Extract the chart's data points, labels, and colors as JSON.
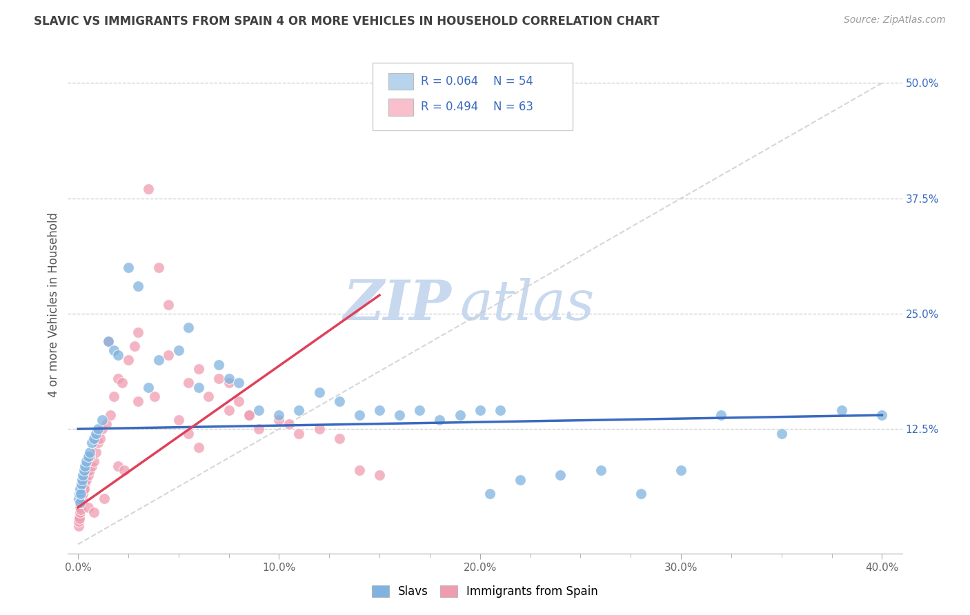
{
  "title": "SLAVIC VS IMMIGRANTS FROM SPAIN 4 OR MORE VEHICLES IN HOUSEHOLD CORRELATION CHART",
  "source_text": "Source: ZipAtlas.com",
  "ylabel": "4 or more Vehicles in Household",
  "x_tick_labels": [
    "0.0%",
    "10.0%",
    "20.0%",
    "30.0%",
    "40.0%"
  ],
  "x_tick_vals": [
    0.0,
    10.0,
    20.0,
    30.0,
    40.0
  ],
  "y_tick_labels": [
    "12.5%",
    "25.0%",
    "37.5%",
    "50.0%"
  ],
  "y_tick_vals": [
    12.5,
    25.0,
    37.5,
    50.0
  ],
  "xlim": [
    -0.5,
    41.0
  ],
  "ylim": [
    -1.0,
    53.0
  ],
  "legend_labels_r": [
    "R = 0.064",
    "R = 0.494"
  ],
  "legend_labels_n": [
    "N = 54",
    "N = 63"
  ],
  "legend_colors": [
    "#b8d4ed",
    "#f9bfcc"
  ],
  "bottom_legend_labels": [
    "Slavs",
    "Immigrants from Spain"
  ],
  "slavs_color": "#7fb3e0",
  "spain_color": "#f09cb0",
  "slavs_line_color": "#3a6abf",
  "spain_line_color": "#e0405a",
  "ref_line_color": "#cccccc",
  "grid_color": "#cccccc",
  "title_color": "#404040",
  "watermark_color": "#c8d8ee",
  "slavs_x": [
    0.05,
    0.08,
    0.1,
    0.12,
    0.15,
    0.18,
    0.2,
    0.25,
    0.3,
    0.35,
    0.4,
    0.5,
    0.6,
    0.7,
    0.8,
    0.9,
    1.0,
    1.2,
    1.5,
    1.8,
    2.0,
    2.5,
    3.0,
    3.5,
    4.0,
    5.0,
    5.5,
    6.0,
    7.0,
    7.5,
    8.0,
    9.0,
    10.0,
    11.0,
    12.0,
    13.0,
    14.0,
    15.0,
    16.0,
    17.0,
    18.0,
    19.0,
    20.5,
    21.0,
    22.0,
    24.0,
    26.0,
    28.0,
    30.0,
    32.0,
    35.0,
    38.0,
    40.0,
    20.0
  ],
  "slavs_y": [
    5.0,
    5.5,
    4.5,
    6.0,
    5.5,
    6.5,
    7.0,
    7.5,
    8.0,
    8.5,
    9.0,
    9.5,
    10.0,
    11.0,
    11.5,
    12.0,
    12.5,
    13.5,
    22.0,
    21.0,
    20.5,
    30.0,
    28.0,
    17.0,
    20.0,
    21.0,
    23.5,
    17.0,
    19.5,
    18.0,
    17.5,
    14.5,
    14.0,
    14.5,
    16.5,
    15.5,
    14.0,
    14.5,
    14.0,
    14.5,
    13.5,
    14.0,
    5.5,
    14.5,
    7.0,
    7.5,
    8.0,
    5.5,
    8.0,
    14.0,
    12.0,
    14.5,
    14.0,
    14.5
  ],
  "spain_x": [
    0.02,
    0.04,
    0.06,
    0.08,
    0.1,
    0.12,
    0.15,
    0.18,
    0.2,
    0.25,
    0.3,
    0.35,
    0.4,
    0.5,
    0.6,
    0.7,
    0.8,
    0.9,
    1.0,
    1.1,
    1.2,
    1.4,
    1.6,
    1.8,
    2.0,
    2.2,
    2.5,
    2.8,
    3.0,
    3.5,
    4.0,
    4.5,
    5.0,
    5.5,
    6.0,
    6.5,
    7.0,
    7.5,
    8.0,
    8.5,
    9.0,
    10.0,
    11.0,
    12.0,
    13.0,
    14.0,
    15.0,
    0.6,
    1.5,
    2.0,
    3.0,
    4.5,
    6.0,
    8.5,
    10.5,
    0.3,
    0.5,
    0.8,
    1.3,
    2.3,
    3.8,
    5.5,
    7.5
  ],
  "spain_y": [
    2.0,
    2.5,
    3.0,
    2.8,
    3.5,
    4.0,
    3.8,
    4.5,
    5.0,
    5.5,
    6.0,
    6.5,
    7.0,
    7.5,
    8.0,
    8.5,
    9.0,
    10.0,
    11.0,
    11.5,
    12.5,
    13.0,
    14.0,
    16.0,
    18.0,
    17.5,
    20.0,
    21.5,
    23.0,
    38.5,
    30.0,
    26.0,
    13.5,
    17.5,
    19.0,
    16.0,
    18.0,
    14.5,
    15.5,
    14.0,
    12.5,
    13.5,
    12.0,
    12.5,
    11.5,
    8.0,
    7.5,
    9.5,
    22.0,
    8.5,
    15.5,
    20.5,
    10.5,
    14.0,
    13.0,
    6.0,
    4.0,
    3.5,
    5.0,
    8.0,
    16.0,
    12.0,
    17.5
  ]
}
